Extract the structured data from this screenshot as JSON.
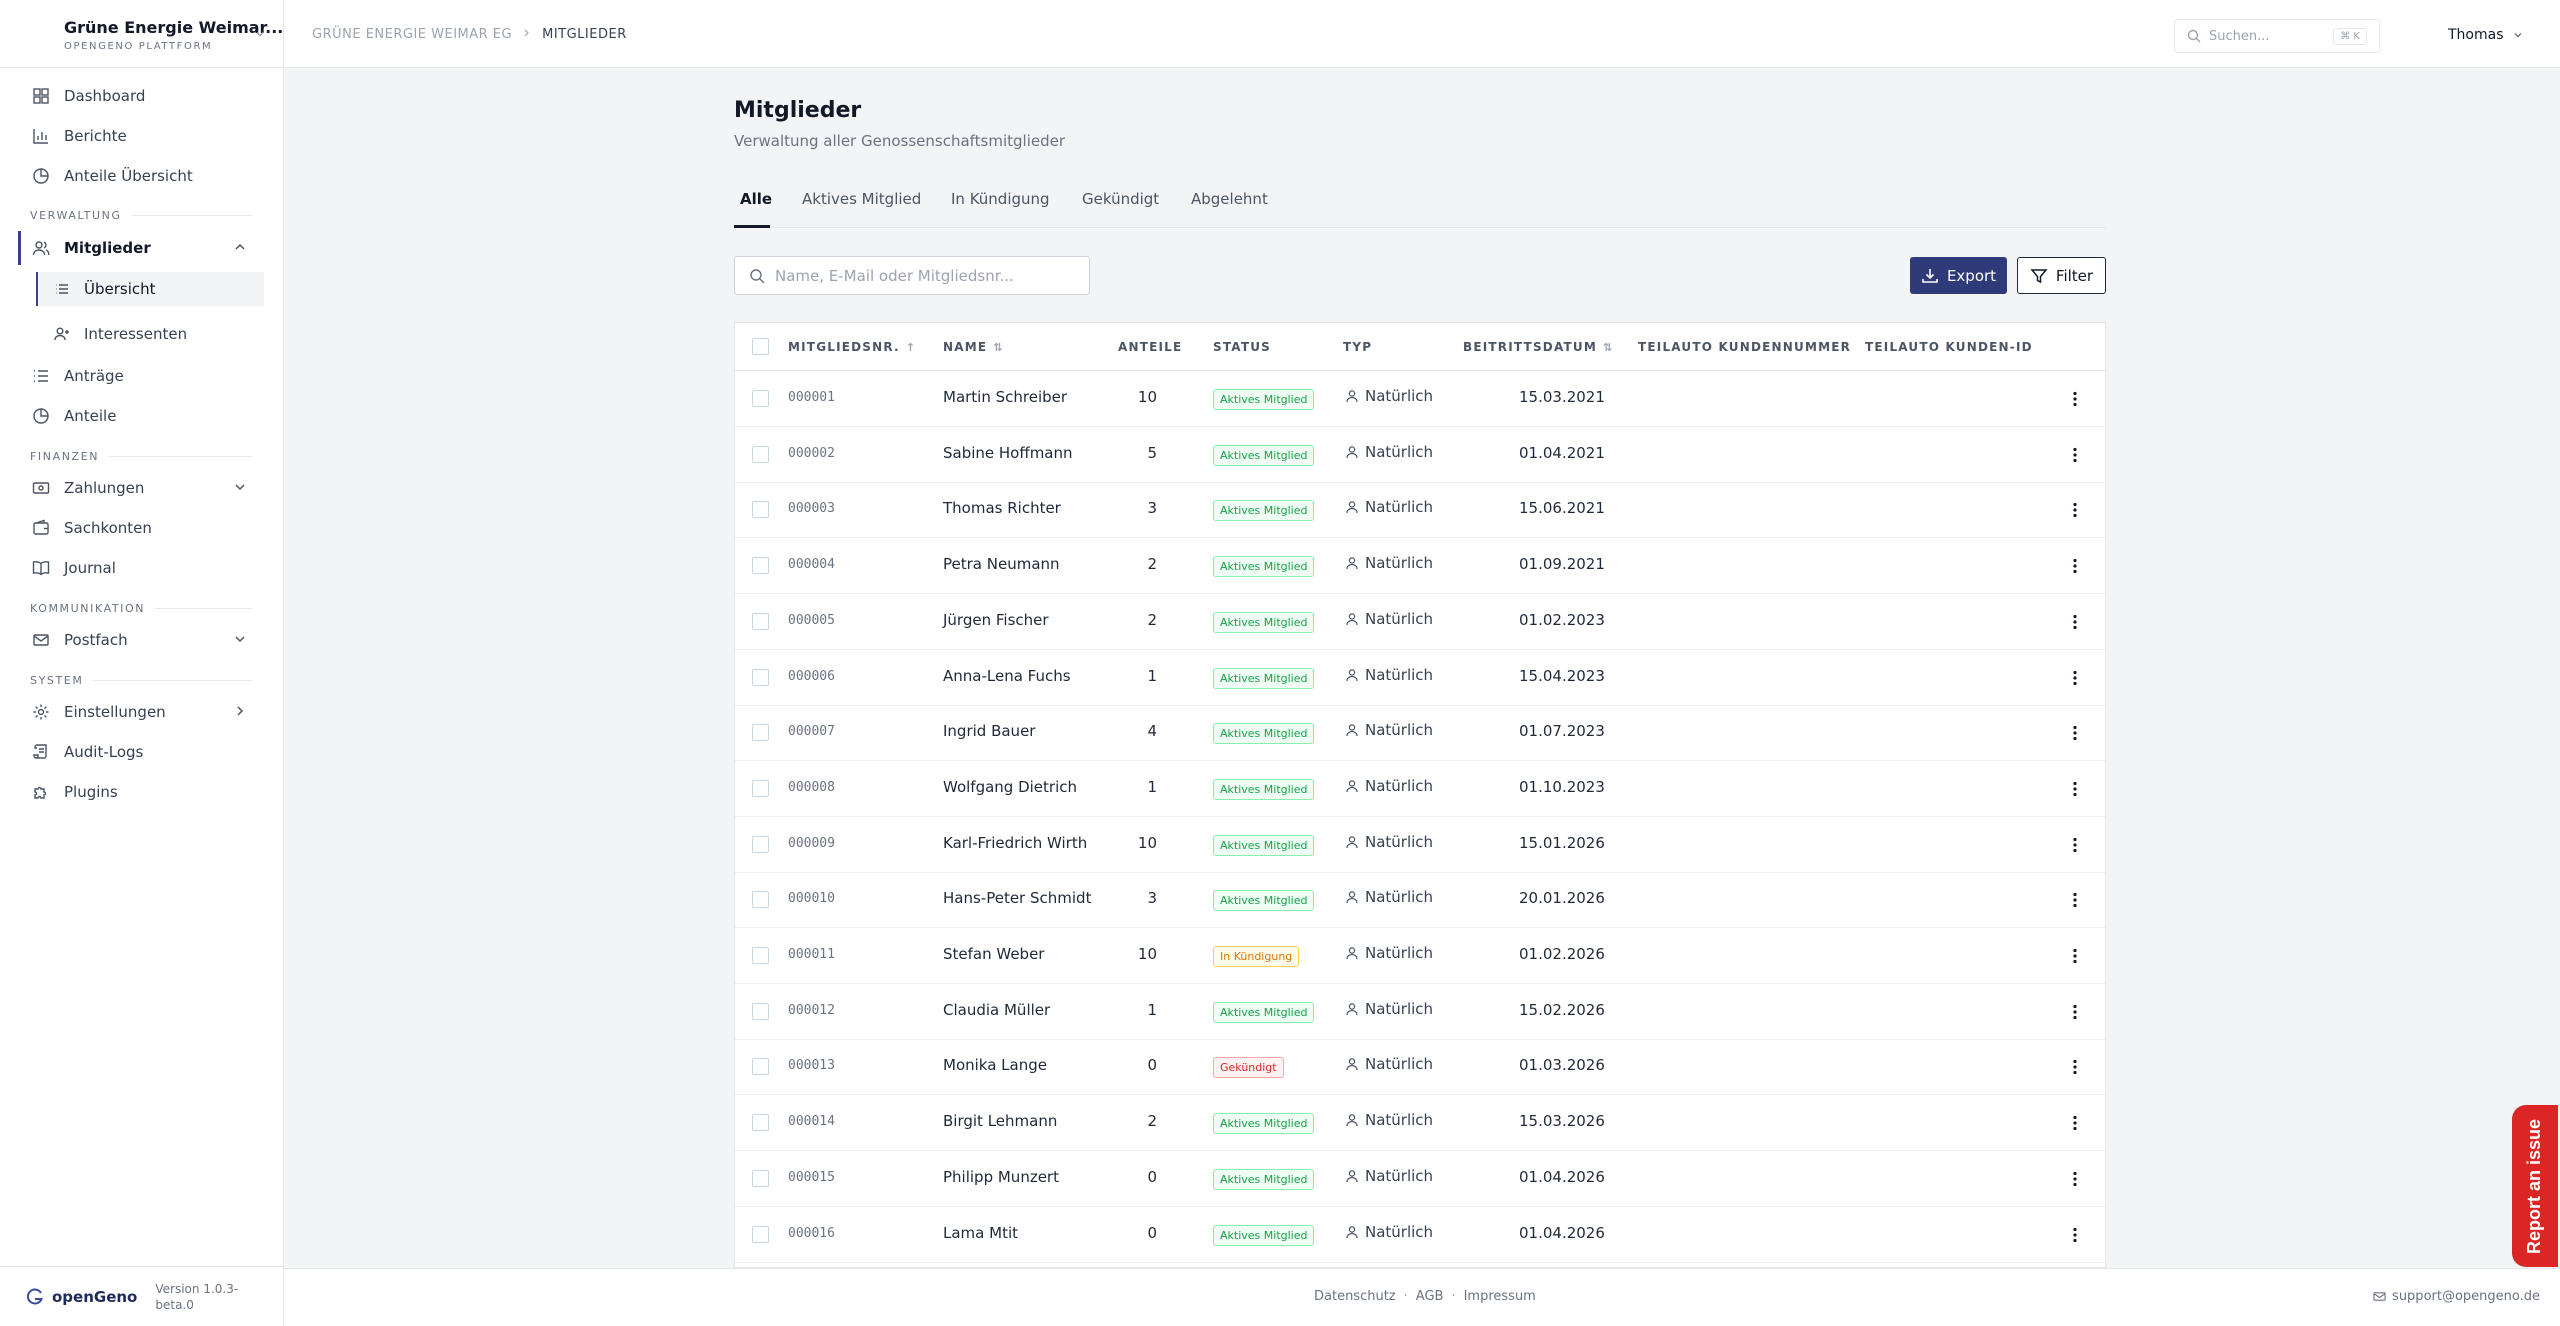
{
  "org": {
    "name": "Grüne Energie Weimar...",
    "subtitle": "OPENGENO PLATTFORM"
  },
  "nav": {
    "dashboard": "Dashboard",
    "berichte": "Berichte",
    "anteile_uebersicht": "Anteile Übersicht",
    "section_verwaltung": "VERWALTUNG",
    "mitglieder": "Mitglieder",
    "uebersicht": "Übersicht",
    "interessenten": "Interessenten",
    "antraege": "Anträge",
    "anteile": "Anteile",
    "section_finanzen": "FINANZEN",
    "zahlungen": "Zahlungen",
    "sachkonten": "Sachkonten",
    "journal": "Journal",
    "section_kommunikation": "KOMMUNIKATION",
    "postfach": "Postfach",
    "section_system": "SYSTEM",
    "einstellungen": "Einstellungen",
    "audit_logs": "Audit-Logs",
    "plugins": "Plugins"
  },
  "brand": {
    "name": "openGeno",
    "version": "Version 1.0.3-beta.0"
  },
  "topbar": {
    "breadcrumb": [
      "GRÜNE ENERGIE WEIMAR EG",
      "MITGLIEDER"
    ],
    "search_placeholder": "Suchen...",
    "shortcut": "⌘ K",
    "user": "Thomas"
  },
  "page": {
    "title": "Mitglieder",
    "subtitle": "Verwaltung aller Genossenschaftsmitglieder"
  },
  "tabs": [
    "Alle",
    "Aktives Mitglied",
    "In Kündigung",
    "Gekündigt",
    "Abgelehnt"
  ],
  "active_tab": "Alle",
  "toolbar": {
    "search_placeholder": "Name, E-Mail oder Mitgliedsnr...",
    "export_label": "Export",
    "filter_label": "Filter"
  },
  "table": {
    "columns": [
      "MITGLIEDSNR.",
      "NAME",
      "ANTEILE",
      "STATUS",
      "TYP",
      "BEITRITTSDATUM",
      "TEILAUTO KUNDENNUMMER",
      "TEILAUTO KUNDEN-ID"
    ],
    "sort_asc": "↑",
    "sort_both": "⇅",
    "rows": [
      {
        "nr": "000001",
        "name": "Martin Schreiber",
        "anteile": "10",
        "status": "Aktives Mitglied",
        "tone": "green",
        "typ": "Natürlich",
        "datum": "15.03.2021"
      },
      {
        "nr": "000002",
        "name": "Sabine Hoffmann",
        "anteile": "5",
        "status": "Aktives Mitglied",
        "tone": "green",
        "typ": "Natürlich",
        "datum": "01.04.2021"
      },
      {
        "nr": "000003",
        "name": "Thomas Richter",
        "anteile": "3",
        "status": "Aktives Mitglied",
        "tone": "green",
        "typ": "Natürlich",
        "datum": "15.06.2021"
      },
      {
        "nr": "000004",
        "name": "Petra Neumann",
        "anteile": "2",
        "status": "Aktives Mitglied",
        "tone": "green",
        "typ": "Natürlich",
        "datum": "01.09.2021"
      },
      {
        "nr": "000005",
        "name": "Jürgen Fischer",
        "anteile": "2",
        "status": "Aktives Mitglied",
        "tone": "green",
        "typ": "Natürlich",
        "datum": "01.02.2023"
      },
      {
        "nr": "000006",
        "name": "Anna-Lena Fuchs",
        "anteile": "1",
        "status": "Aktives Mitglied",
        "tone": "green",
        "typ": "Natürlich",
        "datum": "15.04.2023"
      },
      {
        "nr": "000007",
        "name": "Ingrid Bauer",
        "anteile": "4",
        "status": "Aktives Mitglied",
        "tone": "green",
        "typ": "Natürlich",
        "datum": "01.07.2023"
      },
      {
        "nr": "000008",
        "name": "Wolfgang Dietrich",
        "anteile": "1",
        "status": "Aktives Mitglied",
        "tone": "green",
        "typ": "Natürlich",
        "datum": "01.10.2023"
      },
      {
        "nr": "000009",
        "name": "Karl-Friedrich Wirth",
        "anteile": "10",
        "status": "Aktives Mitglied",
        "tone": "green",
        "typ": "Natürlich",
        "datum": "15.01.2026"
      },
      {
        "nr": "000010",
        "name": "Hans-Peter Schmidt",
        "anteile": "3",
        "status": "Aktives Mitglied",
        "tone": "green",
        "typ": "Natürlich",
        "datum": "20.01.2026"
      },
      {
        "nr": "000011",
        "name": "Stefan Weber",
        "anteile": "10",
        "status": "In Kündigung",
        "tone": "amber",
        "typ": "Natürlich",
        "datum": "01.02.2026"
      },
      {
        "nr": "000012",
        "name": "Claudia Müller",
        "anteile": "1",
        "status": "Aktives Mitglied",
        "tone": "green",
        "typ": "Natürlich",
        "datum": "15.02.2026"
      },
      {
        "nr": "000013",
        "name": "Monika Lange",
        "anteile": "0",
        "status": "Gekündigt",
        "tone": "red",
        "typ": "Natürlich",
        "datum": "01.03.2026"
      },
      {
        "nr": "000014",
        "name": "Birgit Lehmann",
        "anteile": "2",
        "status": "Aktives Mitglied",
        "tone": "green",
        "typ": "Natürlich",
        "datum": "15.03.2026"
      },
      {
        "nr": "000015",
        "name": "Philipp Munzert",
        "anteile": "0",
        "status": "Aktives Mitglied",
        "tone": "green",
        "typ": "Natürlich",
        "datum": "01.04.2026"
      },
      {
        "nr": "000016",
        "name": "Lama Mtit",
        "anteile": "0",
        "status": "Aktives Mitglied",
        "tone": "green",
        "typ": "Natürlich",
        "datum": "01.04.2026"
      }
    ]
  },
  "footer": {
    "links": [
      "Datenschutz",
      "AGB",
      "Impressum"
    ],
    "separator": "·",
    "support": "support@opengeno.de"
  },
  "report_button": "Report an issue",
  "colors": {
    "accent": "#2f3a78",
    "active_bar": "#3b3f8f",
    "report": "#dc2626"
  }
}
